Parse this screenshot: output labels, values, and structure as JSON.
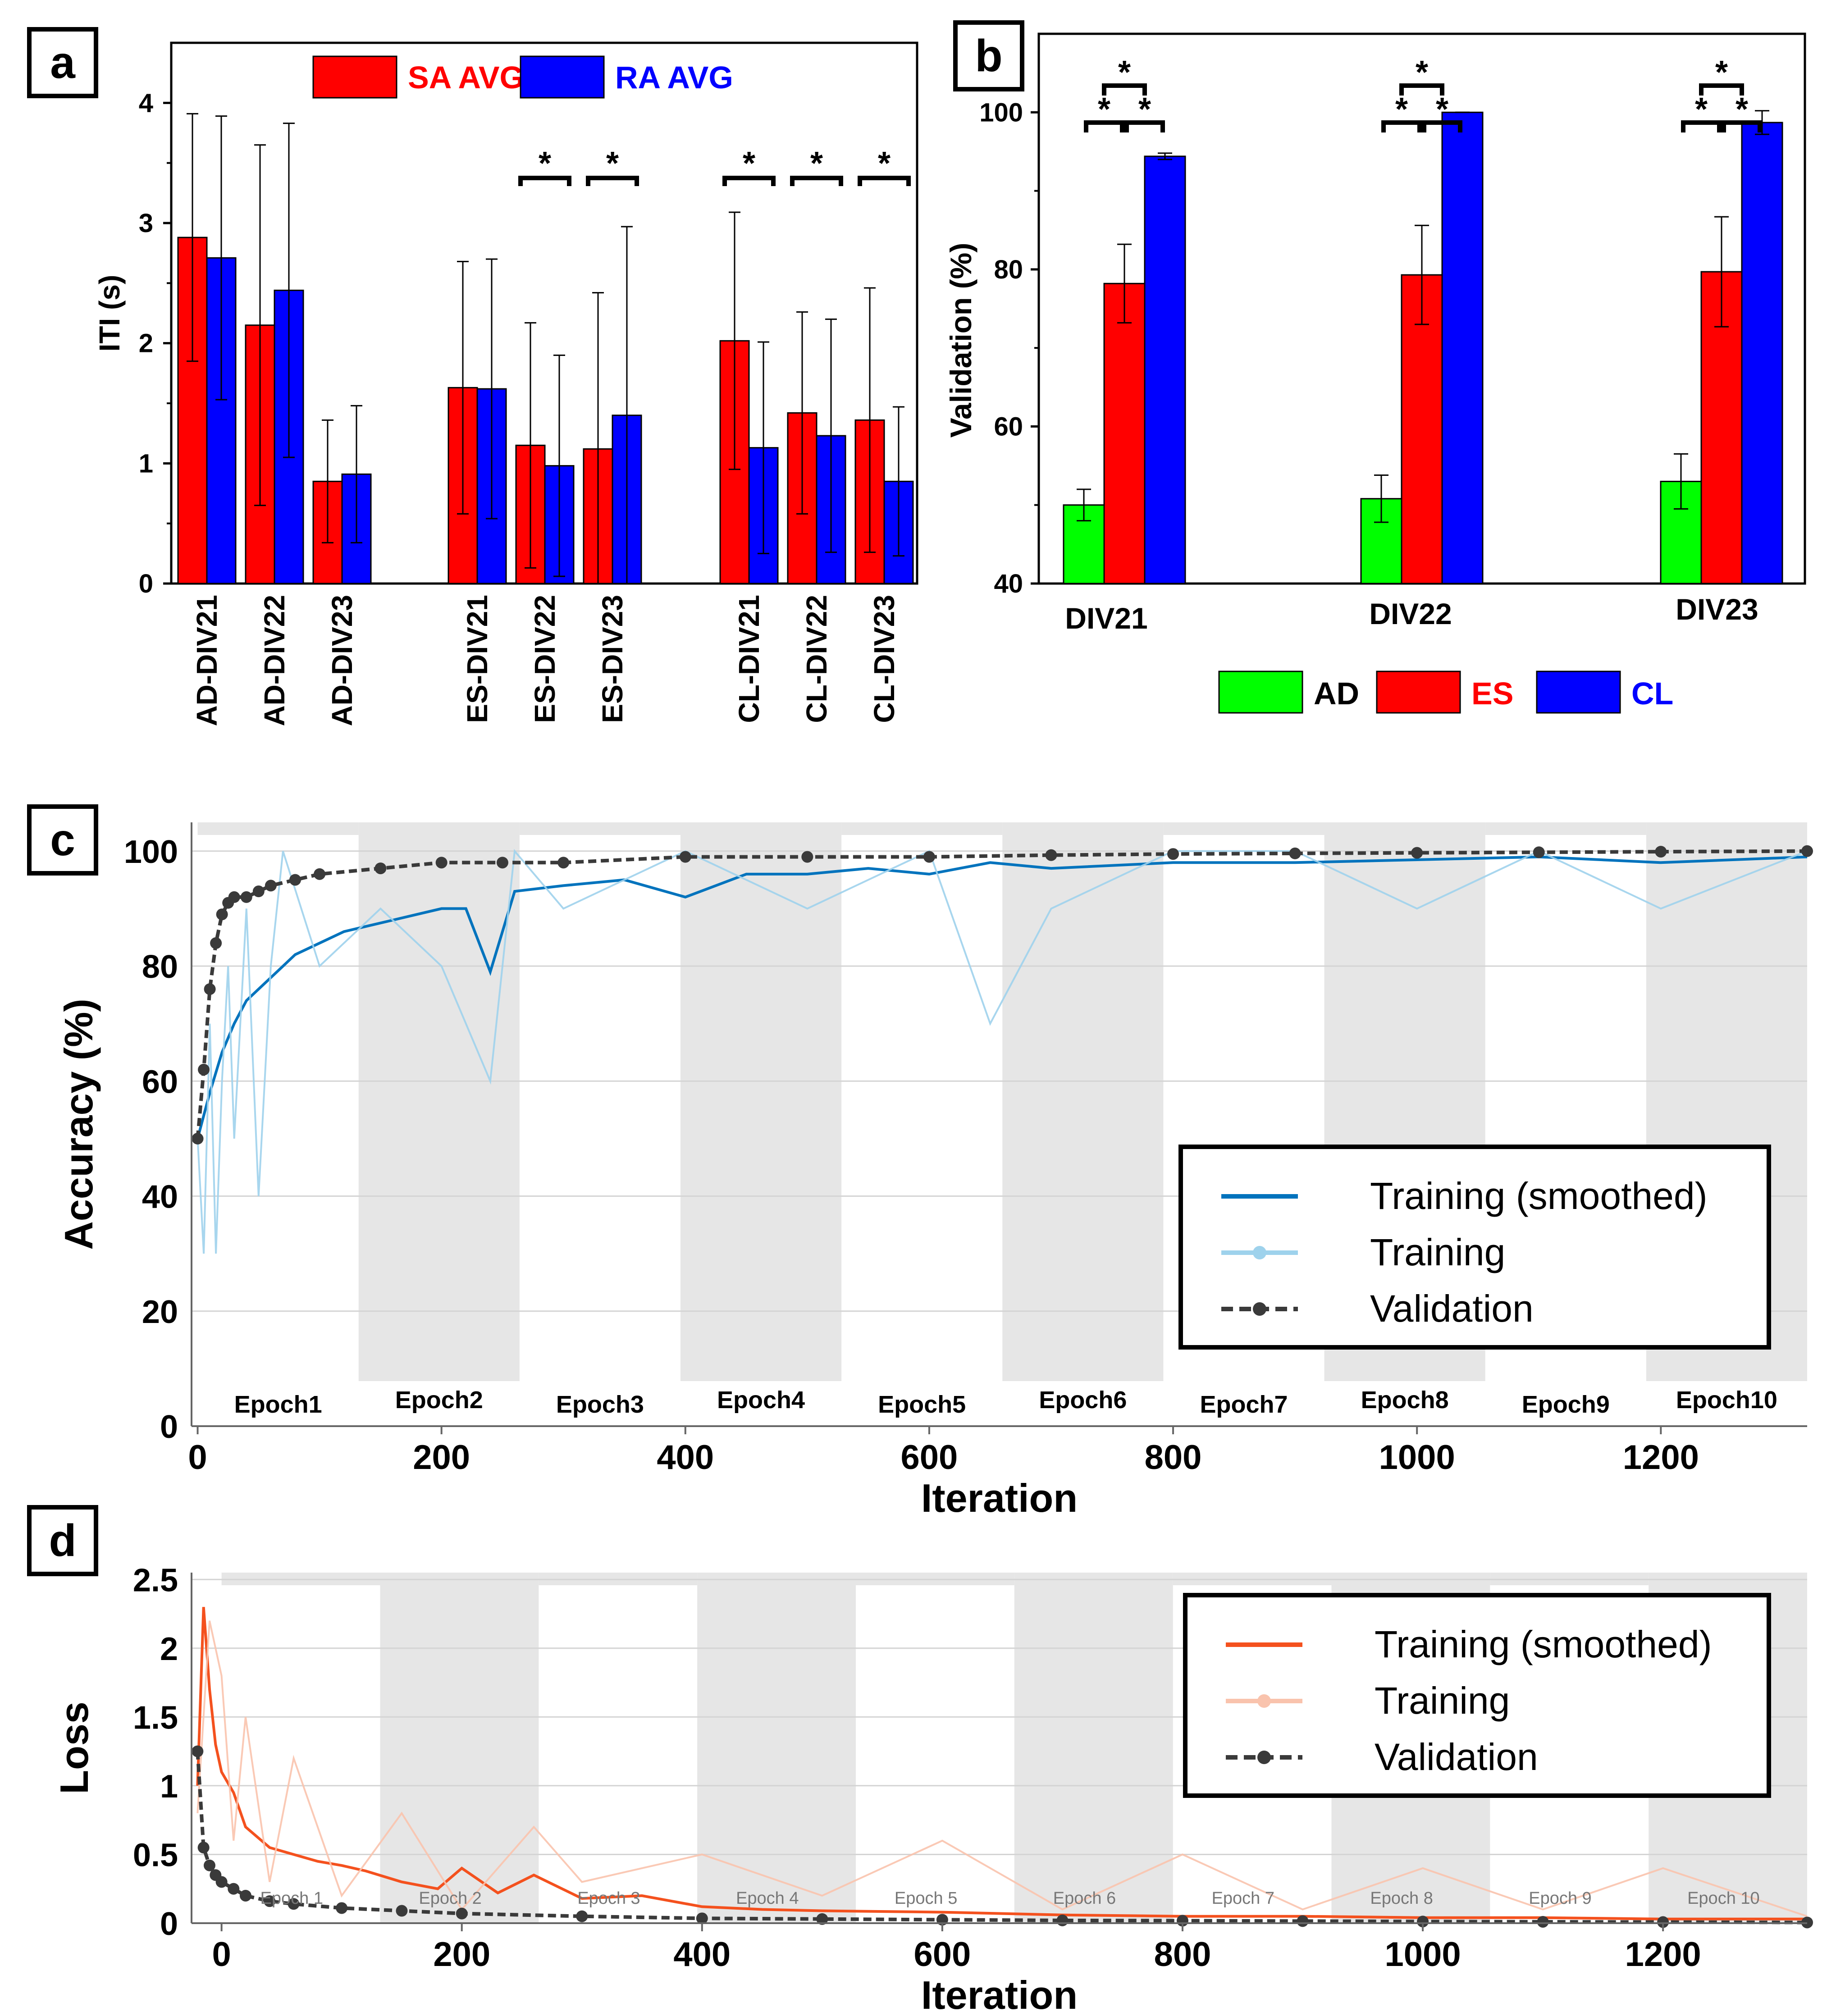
{
  "chart_data": [
    {
      "panel": "a",
      "type": "bar",
      "categories": [
        "AD-DIV21",
        "AD-DIV22",
        "AD-DIV23",
        "ES-DIV21",
        "ES-DIV22",
        "ES-DIV23",
        "CL-DIV21",
        "CL-DIV22",
        "CL-DIV23"
      ],
      "series": [
        {
          "name": "SA AVG",
          "color": "#ff0000",
          "values": [
            2.88,
            2.15,
            0.85,
            1.63,
            1.15,
            1.12,
            2.02,
            1.42,
            1.36
          ],
          "errors": [
            1.03,
            1.5,
            0.51,
            1.05,
            1.02,
            1.3,
            1.07,
            0.84,
            1.1
          ]
        },
        {
          "name": "RA AVG",
          "color": "#0000ff",
          "values": [
            2.71,
            2.44,
            0.91,
            1.62,
            0.98,
            1.4,
            1.13,
            1.23,
            0.85
          ],
          "errors": [
            1.18,
            1.39,
            0.57,
            1.08,
            0.92,
            1.57,
            0.88,
            0.97,
            0.62
          ]
        }
      ],
      "significance": [
        "*",
        "*",
        "*",
        "*",
        "*"
      ],
      "xlabel": "",
      "ylabel": "ITI (s)",
      "ylim": [
        0,
        4.5
      ],
      "yticks": [
        "0",
        "1",
        "2",
        "3",
        "4"
      ]
    },
    {
      "panel": "b",
      "type": "bar",
      "categories": [
        "DIV21",
        "DIV22",
        "DIV23"
      ],
      "series": [
        {
          "name": "AD",
          "color": "#00ff00",
          "values": [
            50,
            50.8,
            53
          ],
          "errors": [
            2,
            3,
            3.5
          ]
        },
        {
          "name": "ES",
          "color": "#ff0000",
          "values": [
            78.2,
            79.3,
            79.7
          ],
          "errors": [
            5,
            6.3,
            7
          ]
        },
        {
          "name": "CL",
          "color": "#0000ff",
          "values": [
            94.4,
            100,
            98.7
          ],
          "errors": [
            0.4,
            0,
            1.5
          ]
        }
      ],
      "significance": [
        "*",
        "*",
        "*",
        "*",
        "*",
        "*",
        "*",
        "*",
        "*"
      ],
      "xlabel": "",
      "ylabel": "Validation (%)",
      "ylim": [
        40,
        110
      ],
      "yticks": [
        "40",
        "60",
        "80",
        "100"
      ]
    },
    {
      "panel": "c",
      "type": "line",
      "title": "",
      "xlabel": "Iteration",
      "ylabel": "Accuracy (%)",
      "xlim": [
        -5,
        1320
      ],
      "ylim": [
        0,
        105
      ],
      "xticks": [
        "0",
        "200",
        "400",
        "600",
        "800",
        "1000",
        "1200"
      ],
      "yticks": [
        "0",
        "20",
        "40",
        "60",
        "80",
        "100"
      ],
      "epochs": [
        "Epoch1",
        "Epoch2",
        "Epoch3",
        "Epoch4",
        "Epoch5",
        "Epoch6",
        "Epoch7",
        "Epoch8",
        "Epoch9",
        "Epoch10"
      ],
      "legend": [
        "Training (smoothed)",
        "Training",
        "Validation"
      ],
      "series": [
        {
          "name": "Training (smoothed)",
          "color": "#0073bd",
          "x": [
            0,
            10,
            20,
            30,
            40,
            50,
            60,
            80,
            100,
            120,
            140,
            160,
            180,
            200,
            220,
            240,
            260,
            300,
            350,
            400,
            450,
            500,
            550,
            600,
            650,
            700,
            800,
            900,
            1000,
            1100,
            1200,
            1320
          ],
          "y": [
            50,
            58,
            65,
            70,
            74,
            76,
            78,
            82,
            84,
            86,
            87,
            88,
            89,
            90,
            90,
            79,
            93,
            94,
            95,
            92,
            96,
            96,
            97,
            96,
            98,
            97,
            98,
            98,
            98.5,
            99,
            98,
            99
          ]
        },
        {
          "name": "Training",
          "color": "#9ed2ec",
          "x": [
            0,
            5,
            10,
            15,
            20,
            25,
            30,
            40,
            50,
            60,
            70,
            100,
            150,
            200,
            240,
            260,
            300,
            400,
            500,
            600,
            650,
            700,
            800,
            900,
            1000,
            1100,
            1200,
            1320
          ],
          "y": [
            50,
            30,
            70,
            30,
            60,
            80,
            50,
            90,
            40,
            80,
            100,
            80,
            90,
            80,
            60,
            100,
            90,
            100,
            90,
            100,
            70,
            90,
            100,
            100,
            90,
            100,
            90,
            100
          ]
        },
        {
          "name": "Validation",
          "color": "#3a3a3a",
          "x": [
            0,
            5,
            10,
            15,
            20,
            25,
            30,
            40,
            50,
            60,
            80,
            100,
            150,
            200,
            250,
            300,
            400,
            500,
            600,
            700,
            800,
            900,
            1000,
            1100,
            1200,
            1320
          ],
          "y": [
            50,
            62,
            76,
            84,
            89,
            91,
            92,
            92,
            93,
            94,
            95,
            96,
            97,
            98,
            98,
            98,
            99,
            99,
            99,
            99.3,
            99.5,
            99.6,
            99.7,
            99.8,
            99.9,
            100
          ]
        }
      ]
    },
    {
      "panel": "d",
      "type": "line",
      "xlabel": "Iteration",
      "ylabel": "Loss",
      "xlim": [
        -25,
        1320
      ],
      "ylim": [
        0,
        2.55
      ],
      "xticks": [
        "0",
        "200",
        "400",
        "600",
        "800",
        "1000",
        "1200"
      ],
      "yticks": [
        "0",
        "0.5",
        "1",
        "1.5",
        "2",
        "2.5"
      ],
      "epochs": [
        "Epoch 1",
        "Epoch 2",
        "Epoch 3",
        "Epoch 4",
        "Epoch 5",
        "Epoch 6",
        "Epoch 7",
        "Epoch 8",
        "Epoch 9",
        "Epoch 10"
      ],
      "legend": [
        "Training (smoothed)",
        "Training",
        "Validation"
      ],
      "series": [
        {
          "name": "Training (smoothed)",
          "color": "#f4511e",
          "x": [
            -20,
            -15,
            -10,
            -5,
            0,
            10,
            20,
            40,
            60,
            80,
            100,
            120,
            150,
            180,
            200,
            230,
            260,
            300,
            350,
            400,
            450,
            500,
            600,
            700,
            800,
            900,
            1000,
            1100,
            1200,
            1320
          ],
          "y": [
            1.0,
            2.3,
            1.7,
            1.3,
            1.1,
            0.95,
            0.7,
            0.55,
            0.5,
            0.45,
            0.42,
            0.38,
            0.3,
            0.25,
            0.4,
            0.22,
            0.35,
            0.18,
            0.2,
            0.12,
            0.1,
            0.09,
            0.08,
            0.06,
            0.05,
            0.05,
            0.04,
            0.04,
            0.03,
            0.03
          ]
        },
        {
          "name": "Training",
          "color": "#f9c3ad",
          "x": [
            -20,
            -10,
            0,
            10,
            20,
            40,
            60,
            100,
            150,
            200,
            260,
            300,
            400,
            500,
            600,
            700,
            800,
            900,
            1000,
            1100,
            1200,
            1320
          ],
          "y": [
            0.8,
            2.2,
            1.8,
            0.6,
            1.5,
            0.3,
            1.2,
            0.2,
            0.8,
            0.1,
            0.7,
            0.3,
            0.5,
            0.2,
            0.6,
            0.1,
            0.5,
            0.1,
            0.4,
            0.1,
            0.4,
            0.05
          ]
        },
        {
          "name": "Validation",
          "color": "#3a3a3a",
          "x": [
            -20,
            -15,
            -10,
            -5,
            0,
            10,
            20,
            40,
            60,
            100,
            150,
            200,
            300,
            400,
            500,
            600,
            700,
            800,
            900,
            1000,
            1100,
            1200,
            1320
          ],
          "y": [
            1.25,
            0.55,
            0.42,
            0.35,
            0.3,
            0.25,
            0.2,
            0.16,
            0.14,
            0.11,
            0.09,
            0.07,
            0.05,
            0.035,
            0.03,
            0.025,
            0.02,
            0.018,
            0.015,
            0.012,
            0.01,
            0.008,
            0.005
          ]
        }
      ]
    }
  ],
  "panel_labels": {
    "a": "a",
    "b": "b",
    "c": "c",
    "d": "d"
  },
  "colors": {
    "red": "#ff0000",
    "blue": "#0000ff",
    "green": "#00ff00",
    "dark": "#3a3a3a"
  }
}
